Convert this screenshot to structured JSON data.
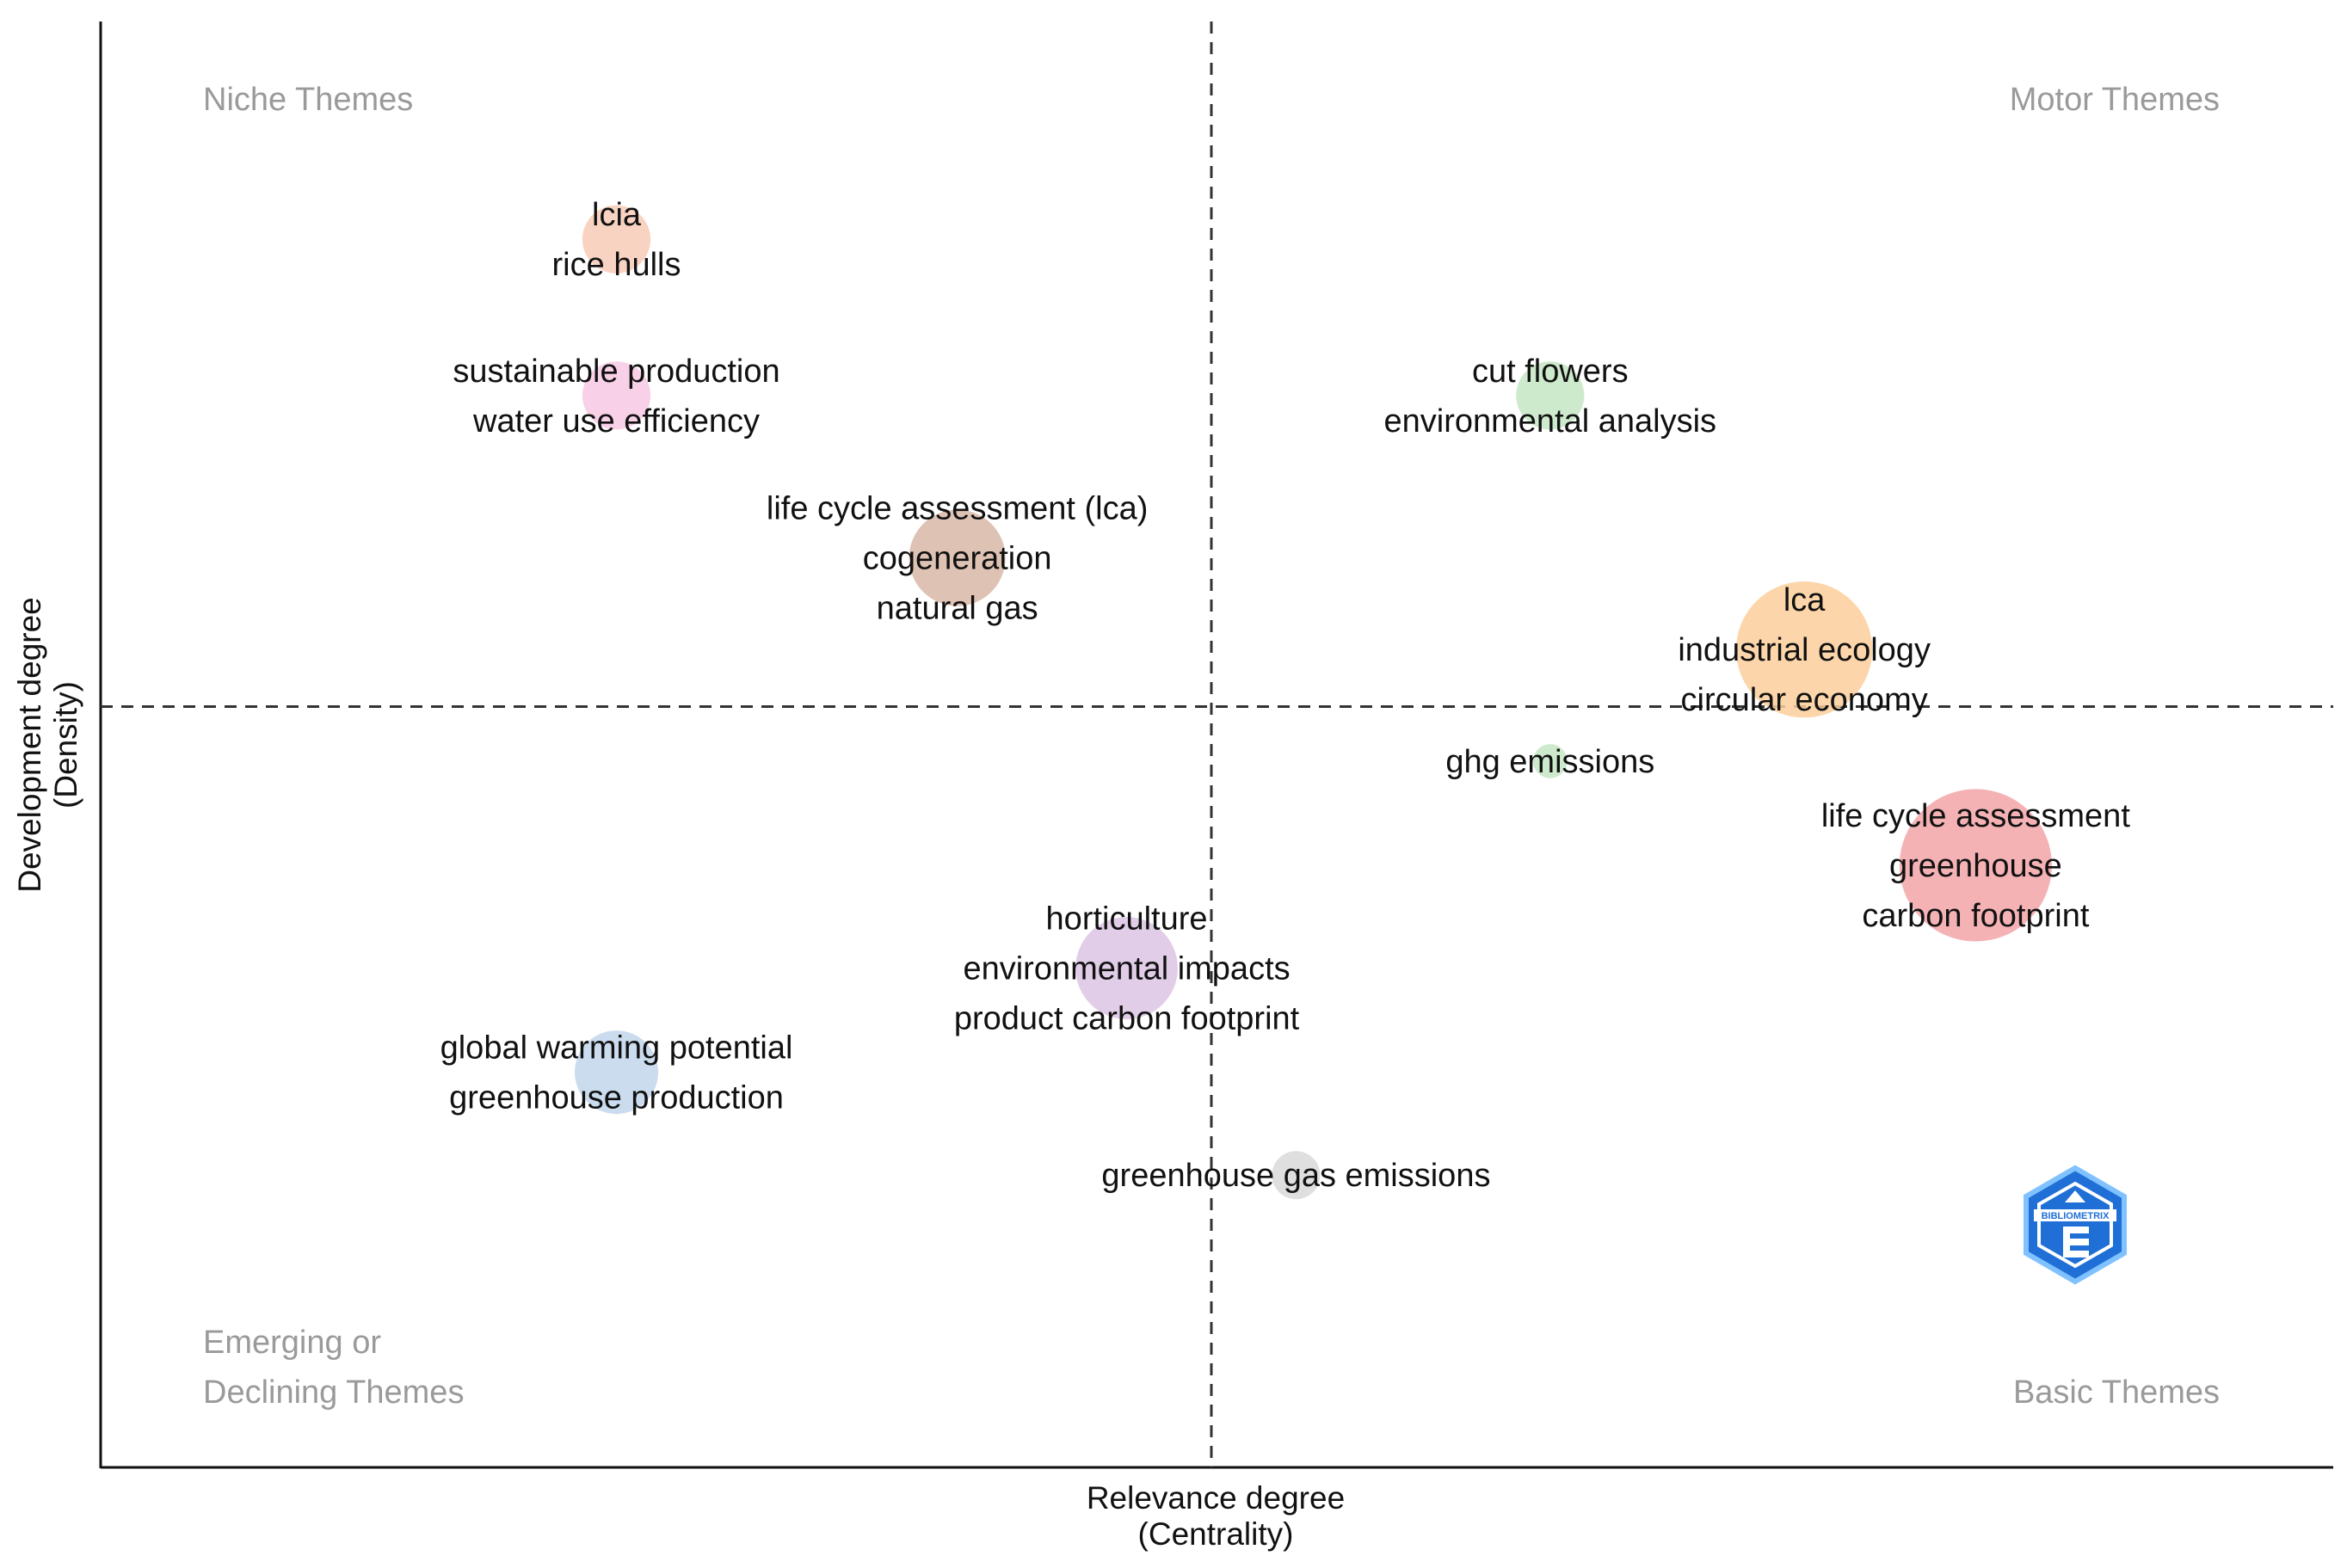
{
  "chart_data": {
    "type": "scatter",
    "subtype": "thematic-map",
    "xlabel": "Relevance degree",
    "xlabel_sub": "(Centrality)",
    "ylabel": "Development degree",
    "ylabel_sub": "(Density)",
    "xlim": [
      0,
      1
    ],
    "ylim": [
      0,
      1
    ],
    "x_divider": 0.5,
    "y_divider": 0.5,
    "grid": false,
    "quadrant_labels": {
      "top_left": [
        "Niche Themes"
      ],
      "top_right": [
        "Motor Themes"
      ],
      "bottom_left": [
        "Emerging or",
        "Declining Themes"
      ],
      "bottom_right": [
        "Basic Themes"
      ]
    },
    "clusters": [
      {
        "name": "lcia",
        "x": 0.205,
        "y": 0.877,
        "size": 2,
        "color": "#f8cbb7",
        "labels": [
          "lcia",
          "rice hulls"
        ]
      },
      {
        "name": "sustainable production",
        "x": 0.205,
        "y": 0.751,
        "size": 2,
        "color": "#f7c9e4",
        "labels": [
          "sustainable production",
          "water use efficiency"
        ]
      },
      {
        "name": "life cycle assessment (lca)",
        "x": 0.374,
        "y": 0.62,
        "size": 4,
        "color": "#d8b7a6",
        "labels": [
          "life cycle assessment (lca)",
          "cogeneration",
          "natural gas"
        ]
      },
      {
        "name": "cut flowers",
        "x": 0.668,
        "y": 0.751,
        "size": 2,
        "color": "#c6e6c3",
        "labels": [
          "cut flowers",
          "environmental analysis"
        ]
      },
      {
        "name": "lca",
        "x": 0.794,
        "y": 0.546,
        "size": 8,
        "color": "#fbcf9b",
        "labels": [
          "lca",
          "industrial ecology",
          "circular economy"
        ]
      },
      {
        "name": "ghg emissions",
        "x": 0.668,
        "y": 0.456,
        "size": 0.5,
        "color": "#c6e6c3",
        "labels": [
          "ghg emissions"
        ]
      },
      {
        "name": "life cycle assessment",
        "x": 0.879,
        "y": 0.372,
        "size": 10,
        "color": "#f2a5a8",
        "labels": [
          "life cycle assessment",
          "greenhouse",
          "carbon footprint"
        ]
      },
      {
        "name": "horticulture",
        "x": 0.458,
        "y": 0.289,
        "size": 4.5,
        "color": "#dcc4e3",
        "labels": [
          "horticulture",
          "environmental impacts",
          "product carbon footprint"
        ]
      },
      {
        "name": "global warming potential",
        "x": 0.205,
        "y": 0.205,
        "size": 3,
        "color": "#c2d6ec",
        "labels": [
          "global warming potential",
          "greenhouse production"
        ]
      },
      {
        "name": "greenhouse gas emissions",
        "x": 0.542,
        "y": 0.122,
        "size": 1,
        "color": "#d9d9d9",
        "labels": [
          "greenhouse gas emissions"
        ]
      }
    ],
    "watermark": "BIBLIOMETRIX"
  }
}
